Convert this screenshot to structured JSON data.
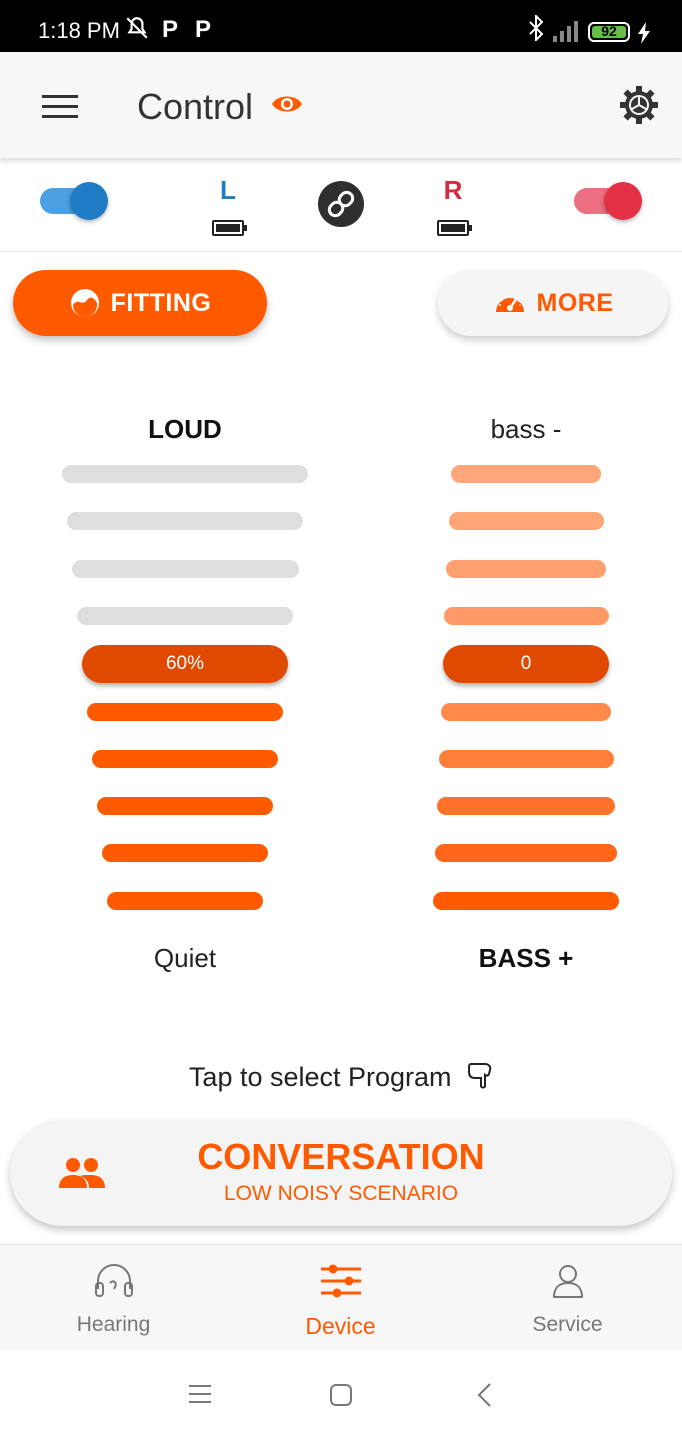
{
  "status_bar": {
    "time": "1:18 PM",
    "notif_icons": [
      "muted-bell-icon",
      "p-icon",
      "p-icon"
    ],
    "battery_level": "92",
    "right_icons": [
      "bluetooth-icon",
      "signal-icon",
      "charging-icon"
    ]
  },
  "app_bar": {
    "title": "Control",
    "icons": [
      "menu-icon",
      "eye-icon",
      "gear-icon"
    ]
  },
  "device": {
    "left_label": "L",
    "right_label": "R",
    "left_toggle_on": true,
    "right_toggle_on": true,
    "left_color": "#1f7cc4",
    "right_color": "#e23144"
  },
  "actions": {
    "fitting_label": "FITTING",
    "more_label": "MORE"
  },
  "volume": {
    "top_label": "LOUD",
    "bottom_label": "Quiet",
    "value_label": "60%",
    "level_step": 5,
    "step_count": 10
  },
  "bass": {
    "top_label": "bass -",
    "bottom_label": "BASS +",
    "value_label": "0",
    "level_step": 5,
    "step_count": 10
  },
  "program": {
    "hint": "Tap to select Program",
    "name": "CONVERSATION",
    "description": "LOW NOISY SCENARIO"
  },
  "bottom_nav": {
    "items": [
      {
        "label": "Hearing",
        "icon": "headphones-icon",
        "active": false
      },
      {
        "label": "Device",
        "icon": "sliders-icon",
        "active": true
      },
      {
        "label": "Service",
        "icon": "person-icon",
        "active": false
      }
    ]
  },
  "colors": {
    "accent": "#ff5a00",
    "accent_dark": "#e04a00",
    "inactive_bar": "#dedede"
  }
}
